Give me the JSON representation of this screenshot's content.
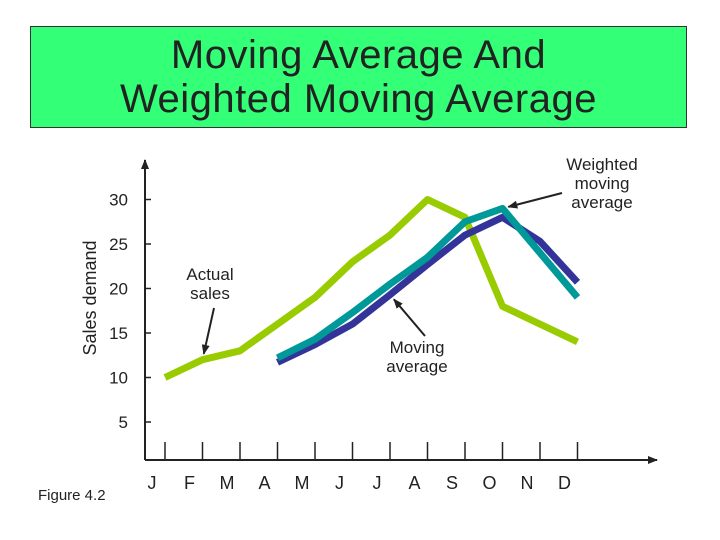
{
  "title": {
    "line1": "Moving Average And",
    "line2": "Weighted Moving Average"
  },
  "figure_label": "Figure 4.2",
  "colors": {
    "background": "#33ff77",
    "actual": "#99cc00",
    "moving_average": "#333399",
    "weighted_moving_average": "#009999",
    "axis": "#222222"
  },
  "chart_data": {
    "type": "line",
    "title": "Moving Average And Weighted Moving Average",
    "xlabel": "",
    "ylabel": "Sales demand",
    "categories": [
      "J",
      "F",
      "M",
      "A",
      "M",
      "J",
      "J",
      "A",
      "S",
      "O",
      "N",
      "D"
    ],
    "y_ticks": [
      5,
      10,
      15,
      20,
      25,
      30
    ],
    "ylim": [
      2,
      35
    ],
    "series": [
      {
        "name": "Actual sales",
        "key": "actual",
        "values": [
          10,
          12,
          13,
          16,
          19,
          23,
          26,
          30,
          28,
          18,
          16,
          14
        ]
      },
      {
        "name": "Moving average",
        "key": "moving_average",
        "values": [
          null,
          null,
          null,
          11.7,
          13.7,
          16.0,
          19.3,
          22.7,
          26.0,
          28.0,
          25.3,
          20.7
        ]
      },
      {
        "name": "Weighted moving average",
        "key": "weighted_moving_average",
        "values": [
          null,
          null,
          null,
          12.2,
          14.3,
          17.3,
          20.5,
          23.5,
          27.5,
          29.0,
          24.0,
          19.0
        ]
      }
    ],
    "annotations": [
      {
        "lines": [
          "Actual",
          "sales"
        ],
        "series": "actual",
        "target_index": 1
      },
      {
        "lines": [
          "Moving",
          "average"
        ],
        "series": "moving_average",
        "target_index": 6
      },
      {
        "lines": [
          "Weighted",
          "moving",
          "average"
        ],
        "series": "weighted_moving_average",
        "target_index": 9
      }
    ]
  }
}
